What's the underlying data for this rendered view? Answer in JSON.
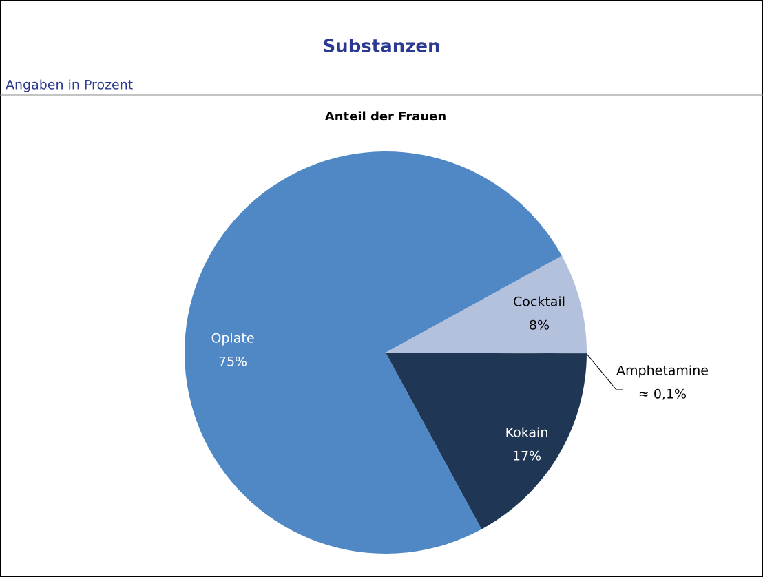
{
  "chart_data": {
    "type": "pie",
    "title": "Substanzen",
    "subtitle": "Angaben in Prozent",
    "chart_title": "Anteil der Frauen",
    "categories": [
      "Amphetamine",
      "Kokain",
      "Opiate",
      "Cocktail"
    ],
    "values": [
      0.1,
      17,
      75,
      8
    ],
    "value_labels": [
      "≈ 0,1%",
      "17%",
      "75%",
      "8%"
    ],
    "colors": [
      "#1f3755",
      "#1f3755",
      "#4f88c4",
      "#b4c1dc"
    ]
  }
}
